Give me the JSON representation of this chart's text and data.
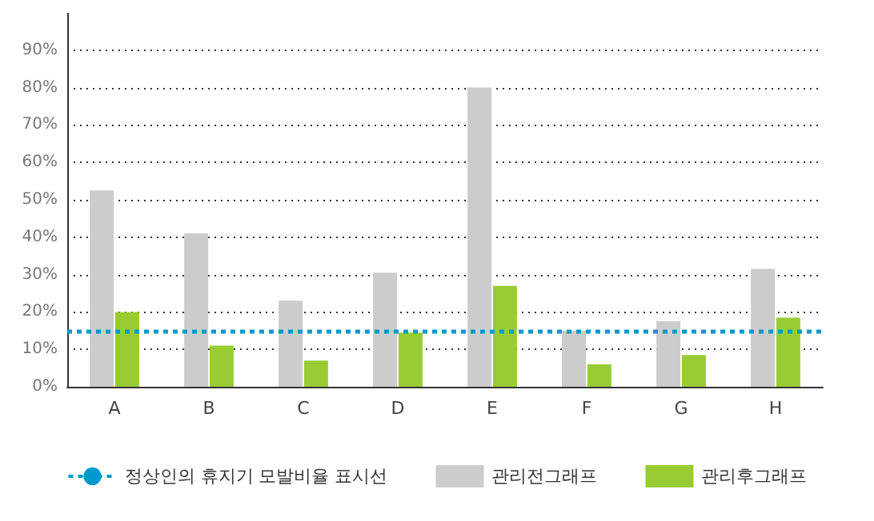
{
  "chart_data": {
    "type": "bar",
    "categories": [
      "A",
      "B",
      "C",
      "D",
      "E",
      "F",
      "G",
      "H"
    ],
    "series": [
      {
        "name": "관리전그래프",
        "color": "#cccccc",
        "values": [
          52.5,
          41,
          23,
          30.5,
          80,
          15,
          17.5,
          31.5
        ]
      },
      {
        "name": "관리후그래프",
        "color": "#99cc33",
        "values": [
          20,
          11,
          7,
          14.5,
          27,
          6,
          8.5,
          18.5
        ]
      }
    ],
    "ylim": [
      0,
      100
    ],
    "yticks": [
      {
        "value": 0,
        "label": "0%"
      },
      {
        "value": 10,
        "label": "10%"
      },
      {
        "value": 20,
        "label": "20%"
      },
      {
        "value": 30,
        "label": "30%"
      },
      {
        "value": 40,
        "label": "40%"
      },
      {
        "value": 50,
        "label": "50%"
      },
      {
        "value": 60,
        "label": "60%"
      },
      {
        "value": 70,
        "label": "70%"
      },
      {
        "value": 80,
        "label": "80%"
      },
      {
        "value": 90,
        "label": "90%"
      }
    ],
    "ref_lines": [
      {
        "axis": "y",
        "value": 15,
        "label": "정상인의 휴지기 모발비율 표시선",
        "color": "#0099cc",
        "line_style": "dotted"
      }
    ],
    "grid": "y",
    "legend": "bottom"
  }
}
